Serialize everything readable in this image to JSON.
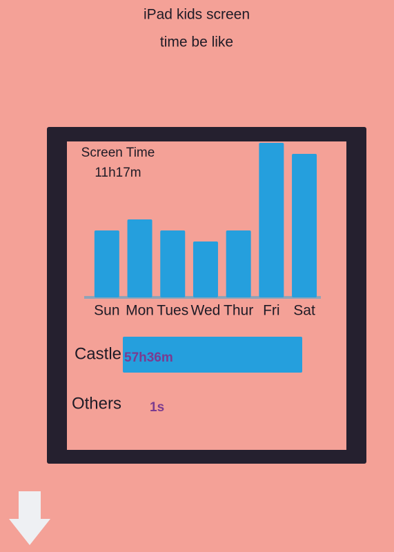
{
  "title_lines": [
    "iPad kids screen",
    "time be like"
  ],
  "chart_data": [
    {
      "type": "bar",
      "title": "Screen Time",
      "subtitle": "11h17m",
      "categories": [
        "Sun",
        "Mon",
        "Tues",
        "Wed",
        "Thur",
        "Fri",
        "Sat"
      ],
      "values": [
        97,
        113,
        97,
        81,
        97,
        224,
        208
      ],
      "color": "#259fdd",
      "ylim": [
        0,
        224
      ]
    },
    {
      "type": "barh",
      "categories": [
        "Castle",
        "Others"
      ],
      "values": [
        3456,
        0.0167
      ],
      "value_labels": [
        "57h36m",
        "1s"
      ],
      "color": "#259fdd",
      "label_color": "#7b3b8f",
      "xlim": [
        0,
        3456
      ]
    }
  ]
}
